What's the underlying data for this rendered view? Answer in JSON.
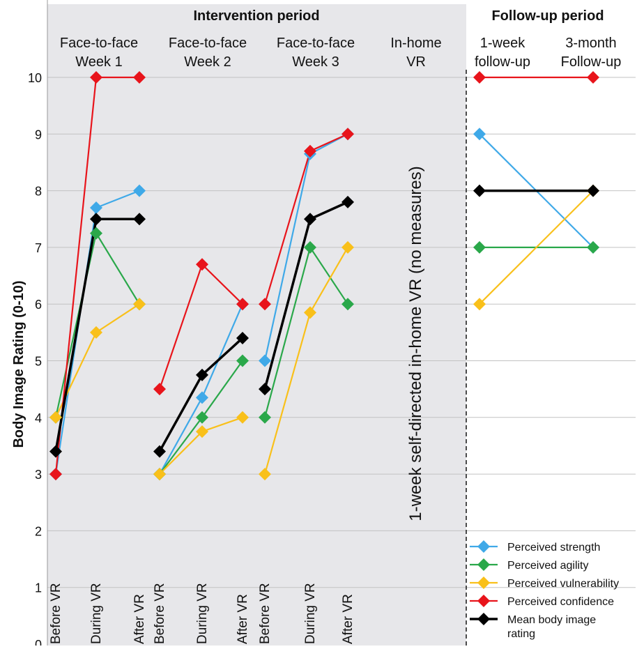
{
  "chart_data": {
    "type": "line",
    "ylabel": "Body Image Rating (0-10)",
    "ylim": [
      0,
      10
    ],
    "yticks": [
      0,
      1,
      2,
      3,
      4,
      5,
      6,
      7,
      8,
      9,
      10
    ],
    "grid": true,
    "legend_position": "bottom-right",
    "periods": [
      {
        "label": "Intervention period"
      },
      {
        "label": "Follow-up period"
      }
    ],
    "groups": [
      {
        "label": [
          "Face-to-face",
          "Week 1"
        ]
      },
      {
        "label": [
          "Face-to-face",
          "Week 2"
        ]
      },
      {
        "label": [
          "Face-to-face",
          "Week 3"
        ]
      },
      {
        "label": [
          "In-home",
          "VR"
        ]
      },
      {
        "label": [
          "1-week",
          "follow-up"
        ]
      },
      {
        "label": [
          "3-month",
          "Follow-up"
        ]
      }
    ],
    "phase_labels": [
      "Before VR",
      "During VR",
      "After VR"
    ],
    "inhome_note": "1-week self-directed in-home VR (no measures)",
    "series": [
      {
        "name": "Perceived strength",
        "color": "#3fa9e8",
        "week1": [
          3.0,
          7.7,
          8.0
        ],
        "week2": [
          3.0,
          4.35,
          6.0
        ],
        "week3": [
          5.0,
          8.65,
          9.0
        ],
        "followup": [
          9.0,
          7.0
        ]
      },
      {
        "name": "Perceived agility",
        "color": "#2aa84a",
        "week1": [
          4.0,
          7.25,
          6.0
        ],
        "week2": [
          3.0,
          4.0,
          5.0
        ],
        "week3": [
          4.0,
          7.0,
          6.0
        ],
        "followup": [
          7.0,
          7.0
        ]
      },
      {
        "name": "Perceived vulnerability",
        "color": "#f9c01a",
        "week1": [
          4.0,
          5.5,
          6.0
        ],
        "week2": [
          3.0,
          3.75,
          4.0
        ],
        "week3": [
          3.0,
          5.85,
          7.0
        ],
        "followup": [
          6.0,
          8.0
        ]
      },
      {
        "name": "Perceived confidence",
        "color": "#e8141b",
        "week1": [
          3.0,
          10.0,
          10.0
        ],
        "week2": [
          4.5,
          6.7,
          6.0
        ],
        "week3": [
          6.0,
          8.7,
          9.0
        ],
        "followup": [
          10.0,
          10.0
        ]
      },
      {
        "name": "Mean body image rating",
        "color": "#000000",
        "week1": [
          3.4,
          7.5,
          7.5
        ],
        "week2": [
          3.4,
          4.75,
          5.4
        ],
        "week3": [
          4.5,
          7.5,
          7.8
        ],
        "followup": [
          8.0,
          8.0
        ]
      }
    ],
    "legend": [
      {
        "text": [
          "Perceived strength"
        ]
      },
      {
        "text": [
          "Perceived agility"
        ]
      },
      {
        "text": [
          "Perceived vulnerability"
        ]
      },
      {
        "text": [
          "Perceived confidence"
        ]
      },
      {
        "text": [
          "Mean body image",
          "rating"
        ]
      }
    ]
  }
}
